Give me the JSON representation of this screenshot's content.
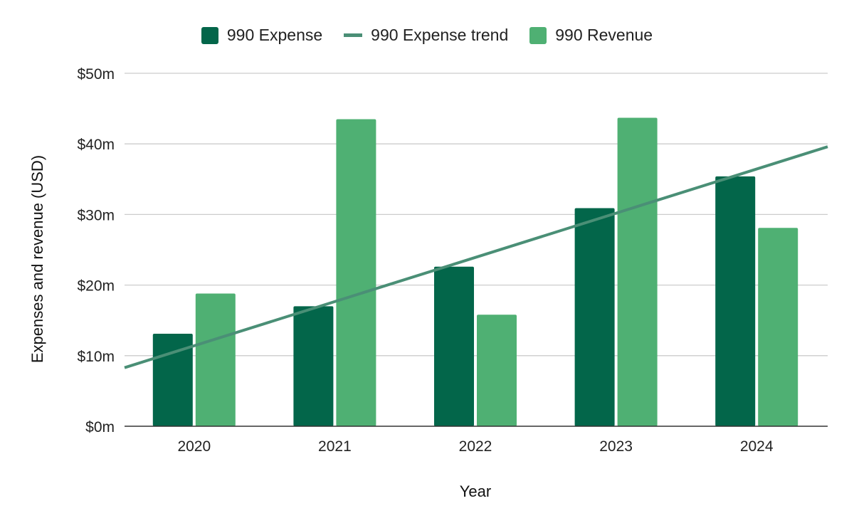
{
  "chart_data": {
    "type": "bar",
    "categories": [
      "2020",
      "2021",
      "2022",
      "2023",
      "2024"
    ],
    "series": [
      {
        "name": "990 Expense",
        "color": "#03664a",
        "values": [
          13.1,
          17.0,
          22.6,
          30.9,
          35.4
        ]
      },
      {
        "name": "990 Revenue",
        "color": "#4fb073",
        "values": [
          18.8,
          43.5,
          15.8,
          43.7,
          28.1
        ]
      }
    ],
    "trend": {
      "name": "990 Expense trend",
      "color": "#4a8f76",
      "type": "linear",
      "start": 8.3,
      "end": 39.6
    },
    "xlabel": "Year",
    "ylabel": "Expenses and revenue (USD)",
    "ylim": [
      0,
      50
    ],
    "yticks": [
      0,
      10,
      20,
      30,
      40,
      50
    ],
    "ytick_labels": [
      "$0m",
      "$10m",
      "$20m",
      "$30m",
      "$40m",
      "$50m"
    ],
    "grid": true,
    "legend_position": "top-center"
  }
}
